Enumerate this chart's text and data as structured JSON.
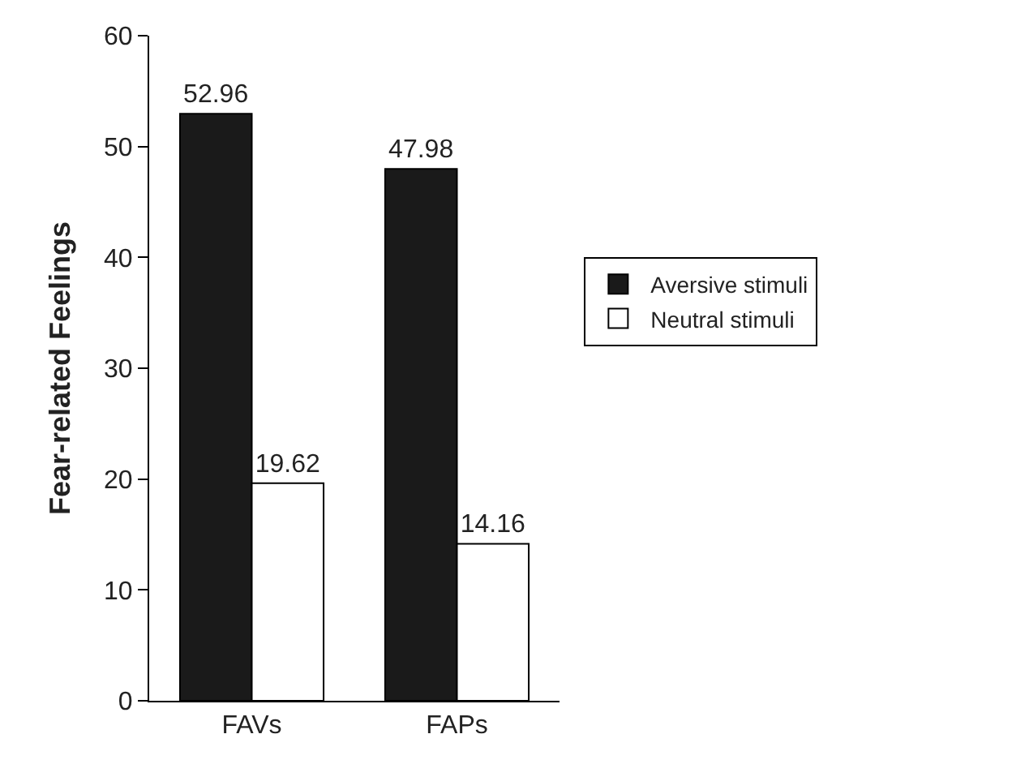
{
  "chart_data": {
    "type": "bar",
    "ylabel": "Fear-related Feelings",
    "categories": [
      "FAVs",
      "FAPs"
    ],
    "series": [
      {
        "name": "Aversive stimuli",
        "color": "#1a1a1a",
        "values": [
          52.96,
          47.98
        ]
      },
      {
        "name": "Neutral stimuli",
        "color": "#ffffff",
        "values": [
          19.62,
          14.16
        ]
      }
    ],
    "ylim": [
      0,
      60
    ],
    "yticks": [
      0,
      10,
      20,
      30,
      40,
      50,
      60
    ],
    "data_labels": true,
    "legend": "right"
  }
}
